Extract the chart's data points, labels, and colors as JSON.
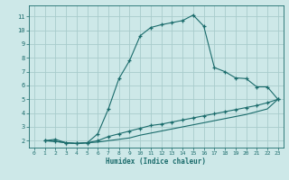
{
  "xlabel": "Humidex (Indice chaleur)",
  "bg_color": "#cde8e8",
  "grid_color": "#a8cccc",
  "line_color": "#1a6b6b",
  "xlim": [
    -0.5,
    23.5
  ],
  "ylim": [
    1.5,
    11.8
  ],
  "xticks": [
    0,
    1,
    2,
    3,
    4,
    5,
    6,
    7,
    8,
    9,
    10,
    11,
    12,
    13,
    14,
    15,
    16,
    17,
    18,
    19,
    20,
    21,
    22,
    23
  ],
  "yticks": [
    2,
    3,
    4,
    5,
    6,
    7,
    8,
    9,
    10,
    11
  ],
  "curve1_x": [
    1,
    2,
    3,
    4,
    5,
    6,
    7,
    8,
    9,
    10,
    11,
    12,
    13,
    14,
    15,
    16,
    17,
    18,
    19,
    20,
    21,
    22,
    23
  ],
  "curve1_y": [
    2.0,
    2.1,
    1.85,
    1.8,
    1.85,
    2.5,
    4.3,
    6.5,
    7.8,
    9.6,
    10.2,
    10.4,
    10.55,
    10.7,
    11.1,
    10.3,
    7.3,
    7.0,
    6.55,
    6.5,
    5.9,
    5.9,
    5.0
  ],
  "curve2_x": [
    1,
    2,
    3,
    4,
    5,
    6,
    7,
    8,
    9,
    10,
    11,
    12,
    13,
    14,
    15,
    16,
    17,
    18,
    19,
    20,
    21,
    22,
    23
  ],
  "curve2_y": [
    2.0,
    1.95,
    1.85,
    1.8,
    1.85,
    2.0,
    2.3,
    2.5,
    2.7,
    2.9,
    3.1,
    3.2,
    3.35,
    3.5,
    3.65,
    3.8,
    3.95,
    4.1,
    4.25,
    4.4,
    4.55,
    4.75,
    5.0
  ],
  "curve3_x": [
    1,
    2,
    3,
    4,
    5,
    6,
    7,
    8,
    9,
    10,
    11,
    12,
    13,
    14,
    15,
    16,
    17,
    18,
    19,
    20,
    21,
    22,
    23
  ],
  "curve3_y": [
    2.0,
    1.95,
    1.85,
    1.8,
    1.85,
    1.9,
    2.0,
    2.1,
    2.2,
    2.4,
    2.55,
    2.7,
    2.85,
    3.0,
    3.15,
    3.3,
    3.45,
    3.6,
    3.75,
    3.9,
    4.1,
    4.3,
    5.0
  ]
}
